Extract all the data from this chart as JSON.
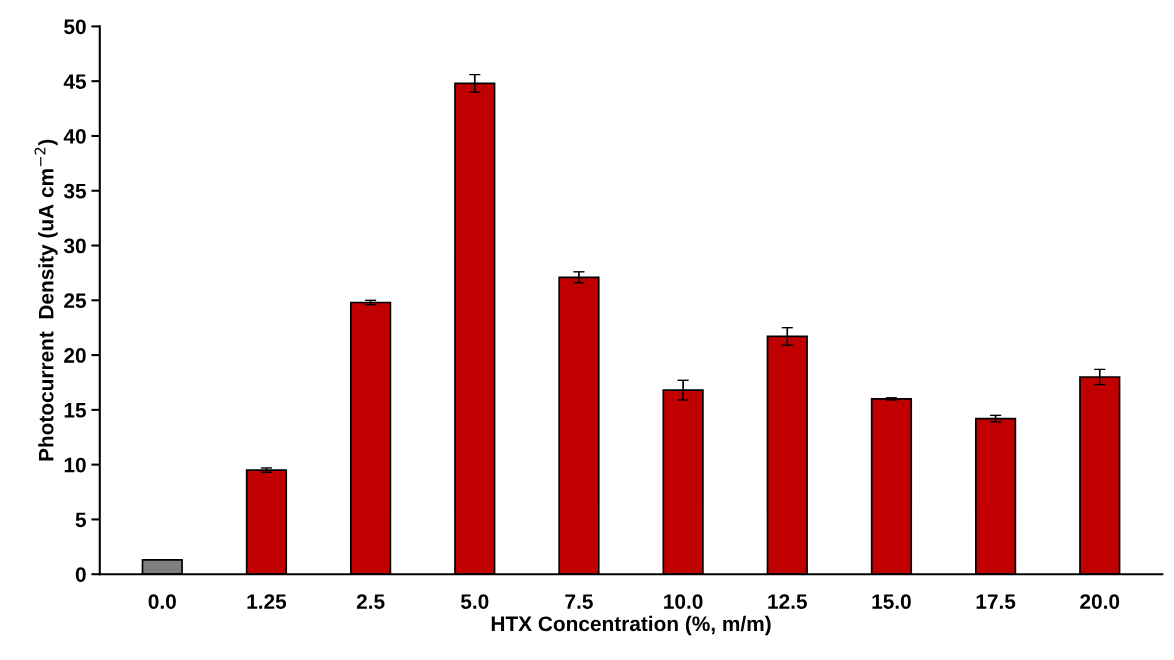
{
  "chart_data": {
    "type": "bar",
    "xlabel": "HTX Concentration (%, m/m)",
    "ylabel": "Photocurrent  Density (uA cm$^{−2}$)",
    "categories": [
      "0.0",
      "1.25",
      "2.5",
      "5.0",
      "7.5",
      "10.0",
      "12.5",
      "15.0",
      "17.5",
      "20.0"
    ],
    "values": [
      1.3,
      9.5,
      24.8,
      44.8,
      27.1,
      16.8,
      21.7,
      16.0,
      14.2,
      18.0
    ],
    "errors": [
      null,
      0.2,
      0.2,
      0.8,
      0.5,
      0.9,
      0.8,
      0.1,
      0.3,
      0.7
    ],
    "colors": [
      "#7f7f7f",
      "#c00000",
      "#c00000",
      "#c00000",
      "#c00000",
      "#c00000",
      "#c00000",
      "#c00000",
      "#c00000",
      "#c00000"
    ],
    "ylim": [
      0,
      50
    ],
    "yticks": [
      0,
      5,
      10,
      15,
      20,
      25,
      30,
      35,
      40,
      45,
      50
    ],
    "grid": false
  }
}
